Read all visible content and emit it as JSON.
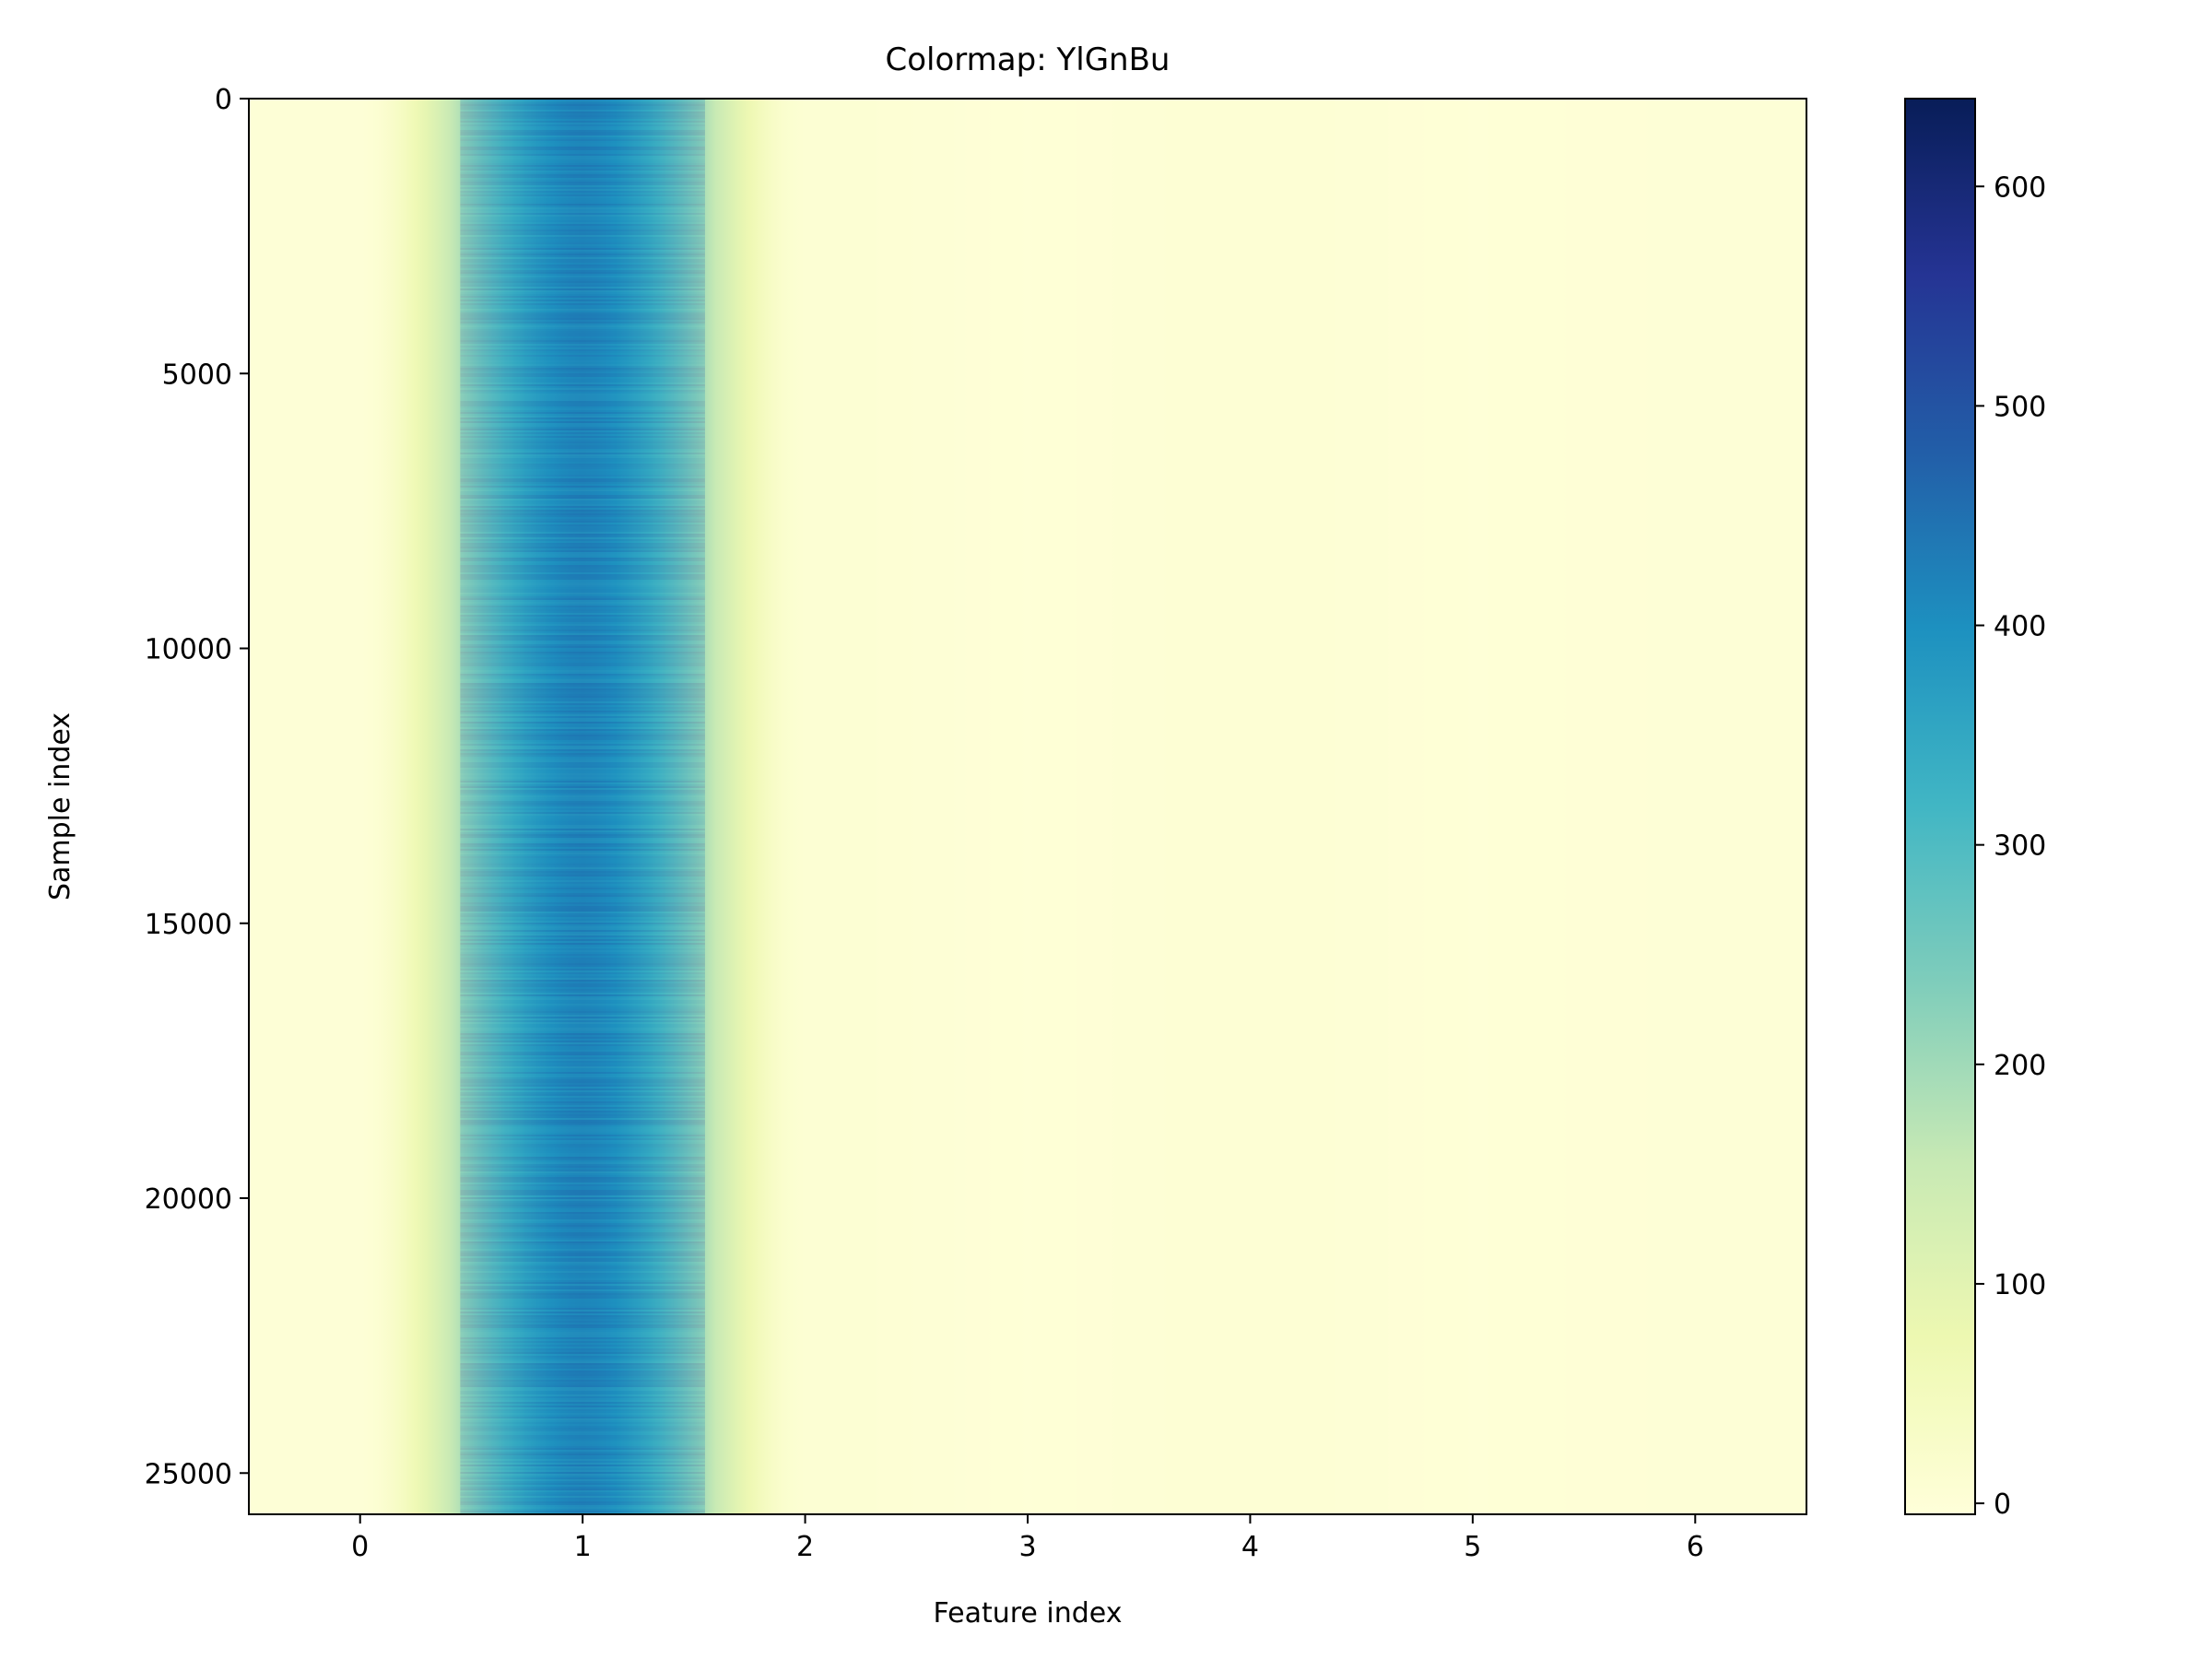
{
  "chart_data": {
    "type": "heatmap",
    "title": "Colormap: YlGnBu",
    "xlabel": "Feature index",
    "ylabel": "Sample index",
    "x_ticks": [
      0,
      1,
      2,
      3,
      4,
      5,
      6
    ],
    "y_ticks": [
      0,
      5000,
      10000,
      15000,
      20000,
      25000
    ],
    "xlim": [
      -0.5,
      6.5
    ],
    "ylim": [
      25750,
      0
    ],
    "n_rows": 25750,
    "n_cols": 7,
    "colormap": "YlGnBu",
    "colorbar": {
      "vmin": -5,
      "vmax": 640,
      "ticks": [
        0,
        100,
        200,
        300,
        400,
        500,
        600
      ]
    },
    "column_means": [
      2,
      420,
      8,
      0,
      6,
      0,
      2
    ],
    "interpolation": "smooth",
    "grid": false
  }
}
